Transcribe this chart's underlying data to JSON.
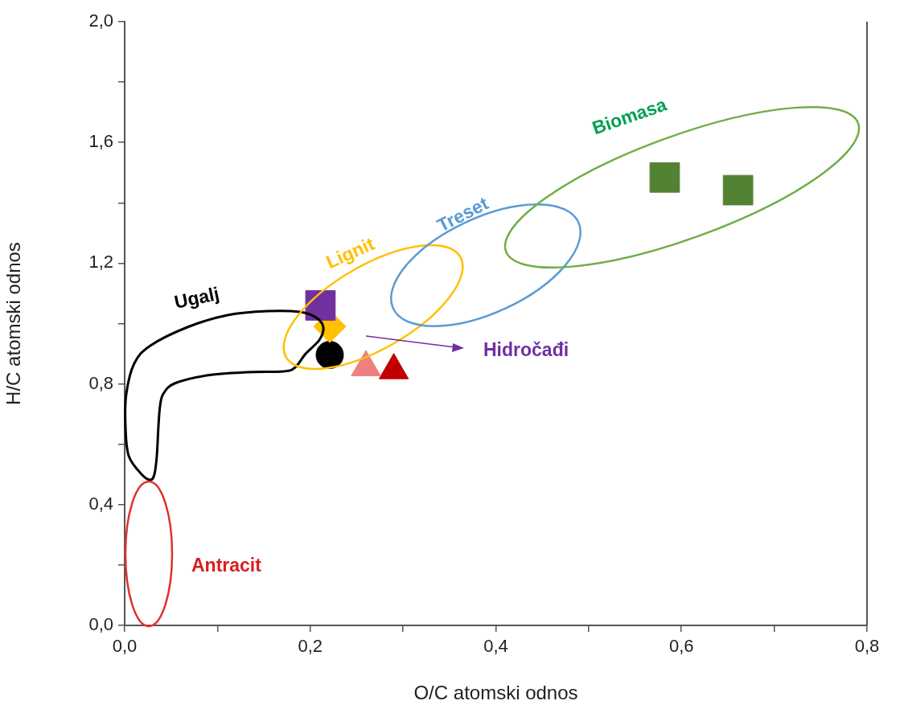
{
  "chart_data": {
    "type": "scatter",
    "xlabel": "O/C atomski odnos",
    "ylabel": "H/C atomski odnos",
    "xlim": [
      0,
      0.8
    ],
    "ylim": [
      0,
      2
    ],
    "xticks": [
      {
        "value": 0,
        "label": "0,0"
      },
      {
        "value": 0.1,
        "label": null
      },
      {
        "value": 0.2,
        "label": "0,2"
      },
      {
        "value": 0.3,
        "label": null
      },
      {
        "value": 0.4,
        "label": "0,4"
      },
      {
        "value": 0.5,
        "label": null
      },
      {
        "value": 0.6,
        "label": "0,6"
      },
      {
        "value": 0.7,
        "label": null
      },
      {
        "value": 0.8,
        "label": "0,8"
      }
    ],
    "yticks": [
      {
        "value": 0,
        "label": "0,0"
      },
      {
        "value": 0.2,
        "label": null
      },
      {
        "value": 0.4,
        "label": "0,4"
      },
      {
        "value": 0.6,
        "label": null
      },
      {
        "value": 0.8,
        "label": "0,8"
      },
      {
        "value": 1.0,
        "label": null
      },
      {
        "value": 1.2,
        "label": "1,2"
      },
      {
        "value": 1.4,
        "label": null
      },
      {
        "value": 1.6,
        "label": "1,6"
      },
      {
        "value": 1.8,
        "label": null
      },
      {
        "value": 2.0,
        "label": "2,0"
      }
    ],
    "series": [
      {
        "color": "#7030a0",
        "marker": "square",
        "x": [
          0.211
        ],
        "values": [
          1.06
        ]
      },
      {
        "color": "#ffc000",
        "marker": "diamond",
        "x": [
          0.221
        ],
        "values": [
          0.99
        ]
      },
      {
        "color": "#000000",
        "marker": "circle",
        "x": [
          0.221
        ],
        "values": [
          0.896
        ]
      },
      {
        "color": "#f08080",
        "marker": "triangle",
        "x": [
          0.26
        ],
        "values": [
          0.855
        ]
      },
      {
        "color": "#c00000",
        "marker": "triangle",
        "x": [
          0.29
        ],
        "values": [
          0.845
        ]
      },
      {
        "color": "#548235",
        "marker": "square",
        "x": [
          0.582
        ],
        "values": [
          1.484
        ]
      },
      {
        "color": "#548235",
        "marker": "square",
        "x": [
          0.661
        ],
        "values": [
          1.442
        ]
      }
    ],
    "annotations": [
      "Ugalj",
      "Lignit",
      "Treset",
      "Biomasa",
      "Antracit",
      "Hidročađi"
    ]
  }
}
